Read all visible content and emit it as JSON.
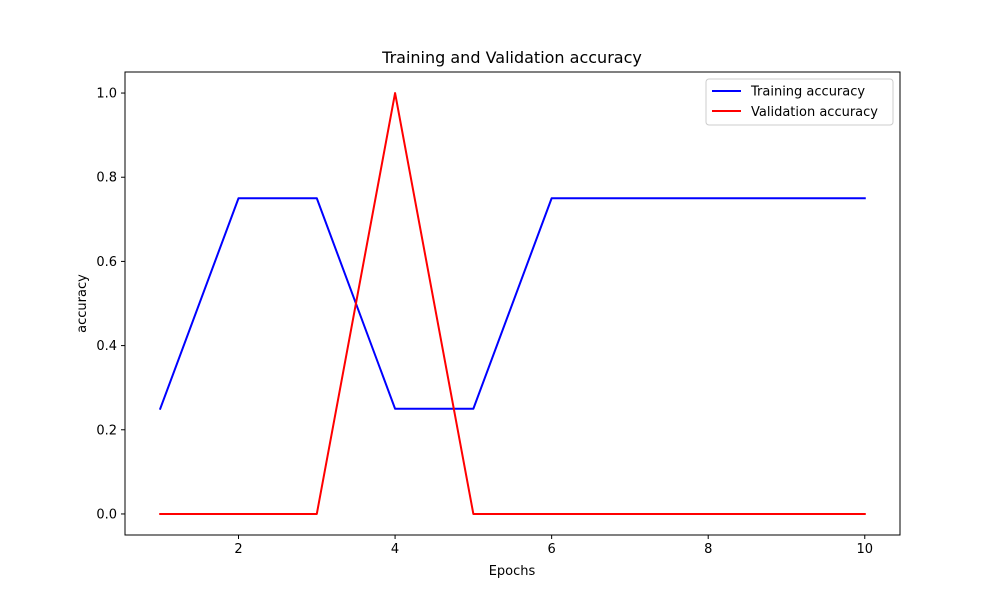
{
  "chart_data": {
    "type": "line",
    "title": "Training and Validation accuracy",
    "xlabel": "Epochs",
    "ylabel": "accuracy",
    "x": [
      1,
      2,
      3,
      4,
      5,
      6,
      7,
      8,
      9,
      10
    ],
    "xlim": [
      0.55,
      10.45
    ],
    "ylim": [
      -0.05,
      1.05
    ],
    "xticks": [
      2,
      4,
      6,
      8,
      10
    ],
    "yticks": [
      0.0,
      0.2,
      0.4,
      0.6,
      0.8,
      1.0
    ],
    "xtick_labels": [
      "2",
      "4",
      "6",
      "8",
      "10"
    ],
    "ytick_labels": [
      "0.0",
      "0.2",
      "0.4",
      "0.6",
      "0.8",
      "1.0"
    ],
    "grid": false,
    "legend_position": "top-right",
    "series": [
      {
        "name": "Training accuracy",
        "color": "#0000ff",
        "values": [
          0.25,
          0.75,
          0.75,
          0.25,
          0.25,
          0.75,
          0.75,
          0.75,
          0.75,
          0.75
        ]
      },
      {
        "name": "Validation accuracy",
        "color": "#ff0000",
        "values": [
          0.0,
          0.0,
          0.0,
          1.0,
          0.0,
          0.0,
          0.0,
          0.0,
          0.0,
          0.0
        ]
      }
    ]
  }
}
